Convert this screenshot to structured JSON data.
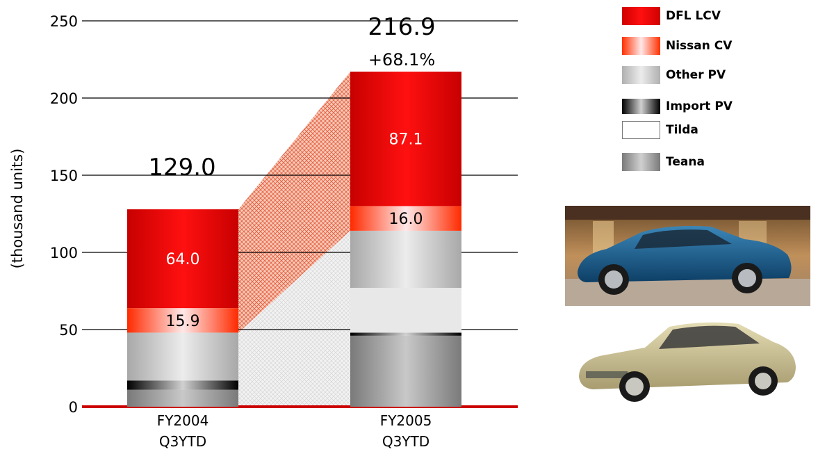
{
  "chart_data": {
    "type": "bar",
    "stacked": true,
    "ylabel": "(thousand units)",
    "ylim": [
      0,
      250
    ],
    "yticks": [
      0,
      50,
      100,
      150,
      200,
      250
    ],
    "grid": true,
    "categories": [
      {
        "line1": "FY2004",
        "line2": "Q3YTD"
      },
      {
        "line1": "FY2005",
        "line2": "Q3YTD"
      }
    ],
    "series": [
      {
        "name": "Teana",
        "values": [
          11,
          46
        ]
      },
      {
        "name": "Import PV",
        "values": [
          6,
          2
        ]
      },
      {
        "name": "Tilda",
        "values": [
          0,
          29
        ]
      },
      {
        "name": "Other PV",
        "values": [
          31,
          37
        ]
      },
      {
        "name": "Nissan CV",
        "values": [
          15.9,
          16.0
        ]
      },
      {
        "name": "DFL LCV",
        "values": [
          64.0,
          87.1
        ]
      }
    ],
    "segment_labels": [
      {
        "category": 0,
        "series": "Nissan CV",
        "text": "15.9"
      },
      {
        "category": 0,
        "series": "DFL LCV",
        "text": "64.0"
      },
      {
        "category": 1,
        "series": "Nissan CV",
        "text": "16.0"
      },
      {
        "category": 1,
        "series": "DFL LCV",
        "text": "87.1"
      }
    ],
    "totals": [
      "129.0",
      "216.9"
    ],
    "growth": "+68.1%",
    "legend_position": "top-right",
    "legend": [
      {
        "name": "DFL LCV",
        "color": "#e60000"
      },
      {
        "name": "Nissan CV",
        "color": "#ff8080"
      },
      {
        "name": "Other PV",
        "color": "#c0c0c0"
      },
      {
        "name": "Import PV",
        "color": "#202020"
      },
      {
        "name": "Tilda",
        "color": "#ffffff"
      },
      {
        "name": "Teana",
        "color": "#909090"
      }
    ],
    "colors": {
      "accent": "#e00000",
      "axis": "#cc0000",
      "grid": "#000000"
    }
  },
  "photos": [
    {
      "name": "teana-photo",
      "icon": "car-photo-blue-sedan"
    },
    {
      "name": "tiida-photo",
      "icon": "car-photo-beige-sedan"
    }
  ]
}
